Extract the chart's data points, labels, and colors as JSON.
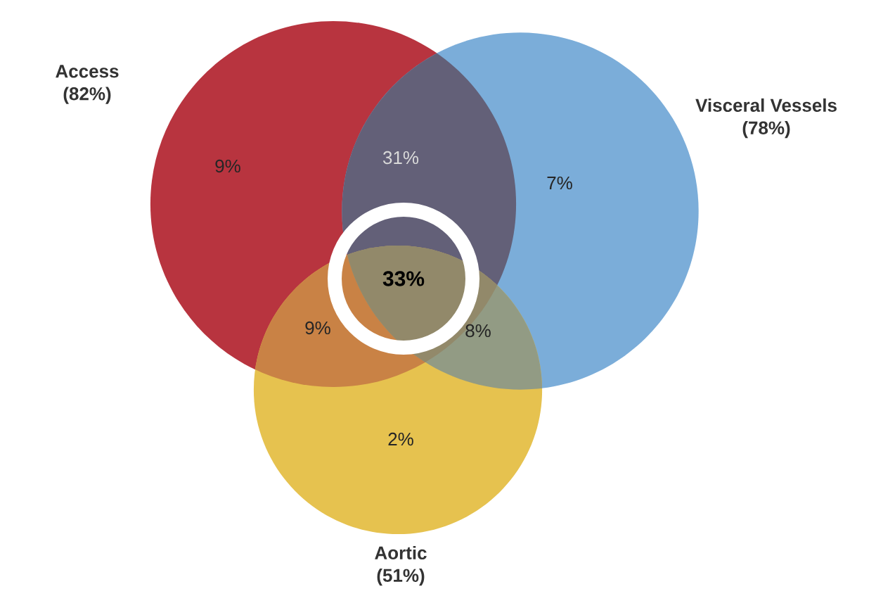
{
  "chart_data": {
    "type": "other",
    "categories": [
      "Access",
      "Visceral Vessels",
      "Aortic"
    ],
    "values": [
      82,
      78,
      51
    ],
    "value_labels": [
      "(82%)",
      "(78%)",
      "(51%)"
    ],
    "colors": [
      "#b8343f",
      "#7badd9",
      "#e6c24f"
    ],
    "annotations": [
      "9%",
      "31%",
      "7%",
      "33%",
      "9%",
      "8%",
      "2%"
    ]
  }
}
